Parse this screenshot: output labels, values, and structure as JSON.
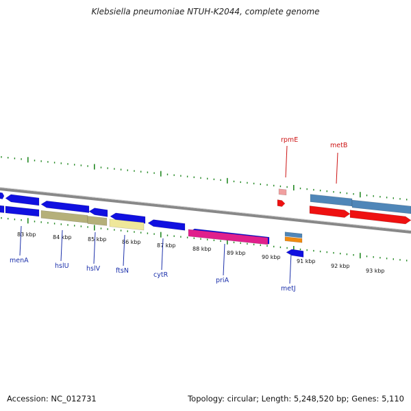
{
  "title": "Klebsiella pneumoniae NTUH-K2044, complete genome",
  "accession": "Accession: NC_012731",
  "topology": "Topology: circular; Length: 5,248,520 bp; Genes: 5,110",
  "scale_labels": [
    "83 kbp",
    "84 kbp",
    "85 kbp",
    "86 kbp",
    "87 kbp",
    "88 kbp",
    "89 kbp",
    "90 kbp",
    "91 kbp",
    "92 kbp",
    "93 kbp"
  ],
  "genes_minus": [
    "menA",
    "hslU",
    "hslV",
    "ftsN",
    "cytR",
    "priA",
    "metJ"
  ],
  "genes_plus": [
    "rpmE",
    "metB"
  ],
  "colors": {
    "backbone": "#888888",
    "tick": "#228822",
    "gene_blue": "#1010e0",
    "gene_olive": "#b5b07a",
    "gene_khaki": "#efe79a",
    "gene_magenta": "#e0208c",
    "gene_red": "#ee1111",
    "gene_pink": "#f0a0a0",
    "gene_steel": "#4f86b8",
    "gene_orange": "#f08a10",
    "label_minus": "#1a2faa",
    "label_plus": "#cc1111"
  }
}
